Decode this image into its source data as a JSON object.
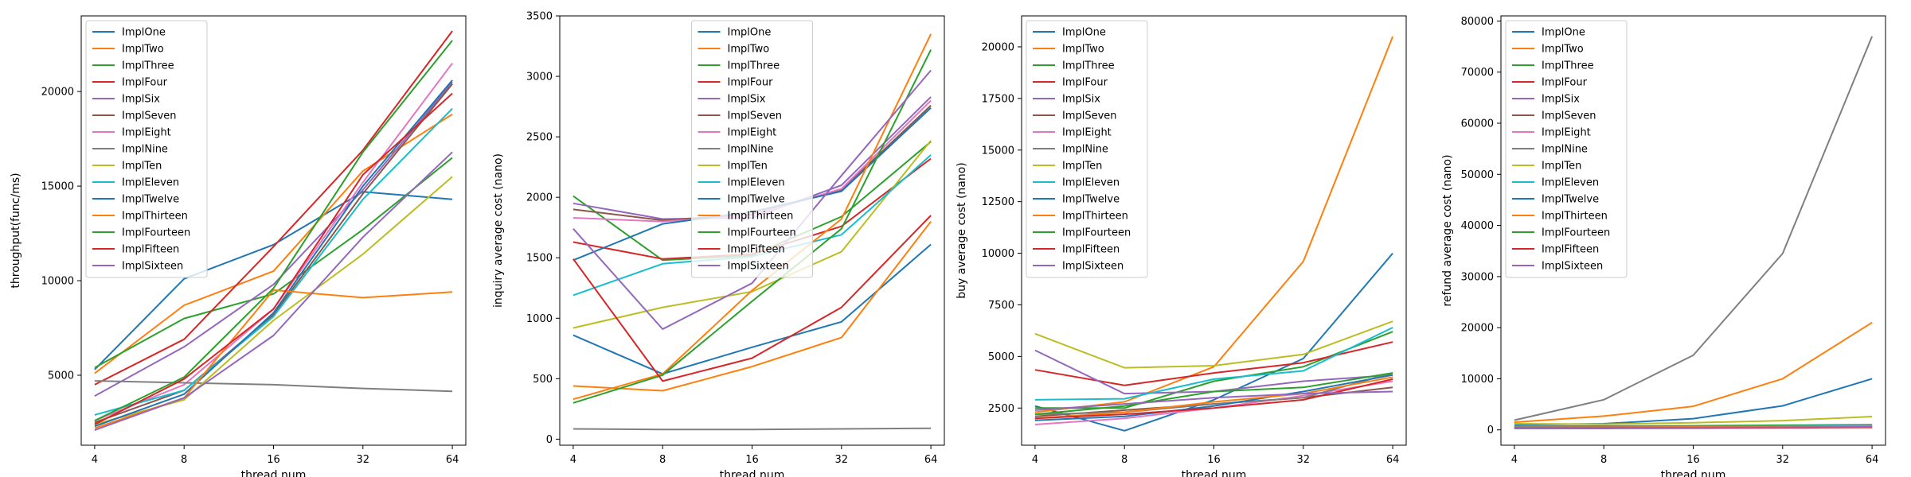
{
  "chart_data": [
    {
      "type": "line",
      "xlabel": "thread num",
      "ylabel": "throughput(func/ms)",
      "x": [
        4,
        8,
        16,
        32,
        64
      ],
      "xscale": "categorical",
      "ylim": [
        1300,
        24000
      ],
      "yticks": [
        5000,
        10000,
        15000,
        20000
      ],
      "legend": "upper left",
      "series": [
        {
          "name": "ImplOne",
          "color": "#1f77b4",
          "values": [
            5300,
            10100,
            11900,
            14700,
            14300
          ]
        },
        {
          "name": "ImplTwo",
          "color": "#ff7f0e",
          "values": [
            5100,
            8700,
            10500,
            15800,
            18800
          ]
        },
        {
          "name": "ImplThree",
          "color": "#2ca02c",
          "values": [
            5400,
            8000,
            9300,
            12700,
            16500
          ]
        },
        {
          "name": "ImplFour",
          "color": "#d62728",
          "values": [
            4500,
            6900,
            11800,
            16900,
            23200
          ]
        },
        {
          "name": "ImplSix",
          "color": "#9467bd",
          "values": [
            3900,
            6500,
            9800,
            14800,
            20500
          ]
        },
        {
          "name": "ImplSeven",
          "color": "#8c564b",
          "values": [
            2500,
            4200,
            8200,
            14600,
            20400
          ]
        },
        {
          "name": "ImplEight",
          "color": "#e377c2",
          "values": [
            2600,
            4500,
            8500,
            15200,
            21500
          ]
        },
        {
          "name": "ImplNine",
          "color": "#7f7f7f",
          "values": [
            4700,
            4600,
            4500,
            4300,
            4150
          ]
        },
        {
          "name": "ImplTen",
          "color": "#bcbd22",
          "values": [
            2400,
            3700,
            7900,
            11400,
            15500
          ]
        },
        {
          "name": "ImplEleven",
          "color": "#17becf",
          "values": [
            2900,
            4200,
            8100,
            14300,
            19100
          ]
        },
        {
          "name": "ImplTwelve",
          "color": "#1f77b4",
          "values": [
            2300,
            4000,
            8300,
            15000,
            20600
          ]
        },
        {
          "name": "ImplThirteen",
          "color": "#ff7f0e",
          "values": [
            2200,
            3800,
            9500,
            9100,
            9400
          ]
        },
        {
          "name": "ImplFourteen",
          "color": "#2ca02c",
          "values": [
            2600,
            4900,
            9600,
            16800,
            22700
          ]
        },
        {
          "name": "ImplFifteen",
          "color": "#d62728",
          "values": [
            2400,
            4800,
            8500,
            15600,
            19900
          ]
        },
        {
          "name": "ImplSixteen",
          "color": "#9467bd",
          "values": [
            2100,
            3800,
            7100,
            12300,
            16800
          ]
        }
      ]
    },
    {
      "type": "line",
      "xlabel": "thread num",
      "ylabel": "inquiry average cost (nano)",
      "x": [
        4,
        8,
        16,
        32,
        64
      ],
      "xscale": "categorical",
      "ylim": [
        -50,
        3500
      ],
      "yticks": [
        0,
        500,
        1000,
        1500,
        2000,
        2500,
        3000,
        3500
      ],
      "legend": "upper center",
      "series": [
        {
          "name": "ImplOne",
          "color": "#1f77b4",
          "values": [
            860,
            540,
            760,
            970,
            1610
          ]
        },
        {
          "name": "ImplTwo",
          "color": "#ff7f0e",
          "values": [
            440,
            400,
            600,
            840,
            1800
          ]
        },
        {
          "name": "ImplThree",
          "color": "#2ca02c",
          "values": [
            2010,
            1480,
            1520,
            1840,
            2460
          ]
        },
        {
          "name": "ImplFour",
          "color": "#d62728",
          "values": [
            1630,
            1490,
            1530,
            1760,
            2320
          ]
        },
        {
          "name": "ImplSix",
          "color": "#9467bd",
          "values": [
            1950,
            1820,
            1830,
            2100,
            2830
          ]
        },
        {
          "name": "ImplSeven",
          "color": "#8c564b",
          "values": [
            1900,
            1810,
            1860,
            2060,
            2760
          ]
        },
        {
          "name": "ImplEight",
          "color": "#e377c2",
          "values": [
            1830,
            1800,
            1850,
            2070,
            2800
          ]
        },
        {
          "name": "ImplNine",
          "color": "#7f7f7f",
          "values": [
            85,
            80,
            80,
            85,
            90
          ]
        },
        {
          "name": "ImplTen",
          "color": "#bcbd22",
          "values": [
            920,
            1090,
            1220,
            1550,
            2470
          ]
        },
        {
          "name": "ImplEleven",
          "color": "#17becf",
          "values": [
            1190,
            1450,
            1510,
            1690,
            2350
          ]
        },
        {
          "name": "ImplTwelve",
          "color": "#1f77b4",
          "values": [
            1480,
            1780,
            1880,
            2050,
            2740
          ]
        },
        {
          "name": "ImplThirteen",
          "color": "#ff7f0e",
          "values": [
            330,
            540,
            1230,
            1820,
            3350
          ]
        },
        {
          "name": "ImplFourteen",
          "color": "#2ca02c",
          "values": [
            300,
            530,
            1140,
            1740,
            3220
          ]
        },
        {
          "name": "ImplFifteen",
          "color": "#d62728",
          "values": [
            1490,
            480,
            670,
            1090,
            1850
          ]
        },
        {
          "name": "ImplSixteen",
          "color": "#9467bd",
          "values": [
            1740,
            910,
            1290,
            2180,
            3050
          ]
        }
      ]
    },
    {
      "type": "line",
      "xlabel": "thread num",
      "ylabel": "buy average cost (nano)",
      "x": [
        4,
        8,
        16,
        32,
        64
      ],
      "xscale": "categorical",
      "ylim": [
        700,
        21500
      ],
      "yticks": [
        2500,
        5000,
        7500,
        10000,
        12500,
        15000,
        17500,
        20000
      ],
      "legend": "upper left",
      "series": [
        {
          "name": "ImplOne",
          "color": "#1f77b4",
          "values": [
            2600,
            1400,
            2900,
            4900,
            10000
          ]
        },
        {
          "name": "ImplTwo",
          "color": "#ff7f0e",
          "values": [
            2300,
            2800,
            4500,
            9600,
            20500
          ]
        },
        {
          "name": "ImplThree",
          "color": "#2ca02c",
          "values": [
            2500,
            2500,
            3800,
            4500,
            6200
          ]
        },
        {
          "name": "ImplFour",
          "color": "#d62728",
          "values": [
            4350,
            3600,
            4200,
            4700,
            5700
          ]
        },
        {
          "name": "ImplSix",
          "color": "#9467bd",
          "values": [
            5300,
            3200,
            3300,
            3800,
            4100
          ]
        },
        {
          "name": "ImplSeven",
          "color": "#8c564b",
          "values": [
            2100,
            2400,
            2700,
            3000,
            3500
          ]
        },
        {
          "name": "ImplEight",
          "color": "#e377c2",
          "values": [
            1700,
            2000,
            2500,
            3100,
            3800
          ]
        },
        {
          "name": "ImplNine",
          "color": "#7f7f7f",
          "values": [
            2200,
            2300,
            2700,
            3000,
            4200
          ]
        },
        {
          "name": "ImplTen",
          "color": "#bcbd22",
          "values": [
            6100,
            4450,
            4550,
            5100,
            6700
          ]
        },
        {
          "name": "ImplEleven",
          "color": "#17becf",
          "values": [
            2900,
            2950,
            3900,
            4300,
            6400
          ]
        },
        {
          "name": "ImplTwelve",
          "color": "#1f77b4",
          "values": [
            1900,
            2100,
            2600,
            3300,
            4100
          ]
        },
        {
          "name": "ImplThirteen",
          "color": "#ff7f0e",
          "values": [
            2000,
            2300,
            2800,
            3200,
            4000
          ]
        },
        {
          "name": "ImplFourteen",
          "color": "#2ca02c",
          "values": [
            2200,
            2600,
            3300,
            3500,
            4200
          ]
        },
        {
          "name": "ImplFifteen",
          "color": "#d62728",
          "values": [
            2000,
            2200,
            2500,
            2900,
            3900
          ]
        },
        {
          "name": "ImplSixteen",
          "color": "#9467bd",
          "values": [
            2400,
            2700,
            3000,
            3200,
            3300
          ]
        }
      ]
    },
    {
      "type": "line",
      "xlabel": "thread num",
      "ylabel": "refund average cost (nano)",
      "x": [
        4,
        8,
        16,
        32,
        64
      ],
      "xscale": "categorical",
      "ylim": [
        -3000,
        81000
      ],
      "yticks": [
        0,
        10000,
        20000,
        30000,
        40000,
        50000,
        60000,
        70000,
        80000
      ],
      "legend": "upper left",
      "series": [
        {
          "name": "ImplOne",
          "color": "#1f77b4",
          "values": [
            1000,
            1200,
            2200,
            4700,
            10000
          ]
        },
        {
          "name": "ImplTwo",
          "color": "#ff7f0e",
          "values": [
            1500,
            2700,
            4600,
            10000,
            21000
          ]
        },
        {
          "name": "ImplThree",
          "color": "#2ca02c",
          "values": [
            700,
            750,
            800,
            900,
            1000
          ]
        },
        {
          "name": "ImplFour",
          "color": "#d62728",
          "values": [
            400,
            420,
            450,
            500,
            600
          ]
        },
        {
          "name": "ImplSix",
          "color": "#9467bd",
          "values": [
            500,
            520,
            560,
            600,
            700
          ]
        },
        {
          "name": "ImplSeven",
          "color": "#8c564b",
          "values": [
            450,
            470,
            500,
            550,
            650
          ]
        },
        {
          "name": "ImplEight",
          "color": "#e377c2",
          "values": [
            380,
            400,
            430,
            470,
            550
          ]
        },
        {
          "name": "ImplNine",
          "color": "#7f7f7f",
          "values": [
            1900,
            5900,
            14600,
            34500,
            77000
          ]
        },
        {
          "name": "ImplTen",
          "color": "#bcbd22",
          "values": [
            1200,
            1100,
            1400,
            1800,
            2600
          ]
        },
        {
          "name": "ImplEleven",
          "color": "#17becf",
          "values": [
            600,
            620,
            680,
            750,
            900
          ]
        },
        {
          "name": "ImplTwelve",
          "color": "#1f77b4",
          "values": [
            550,
            580,
            620,
            700,
            850
          ]
        },
        {
          "name": "ImplThirteen",
          "color": "#ff7f0e",
          "values": [
            500,
            530,
            570,
            650,
            800
          ]
        },
        {
          "name": "ImplFourteen",
          "color": "#2ca02c",
          "values": [
            350,
            370,
            400,
            450,
            520
          ]
        },
        {
          "name": "ImplFifteen",
          "color": "#d62728",
          "values": [
            300,
            320,
            350,
            400,
            480
          ]
        },
        {
          "name": "ImplSixteen",
          "color": "#9467bd",
          "values": [
            420,
            440,
            470,
            520,
            600
          ]
        }
      ]
    }
  ]
}
